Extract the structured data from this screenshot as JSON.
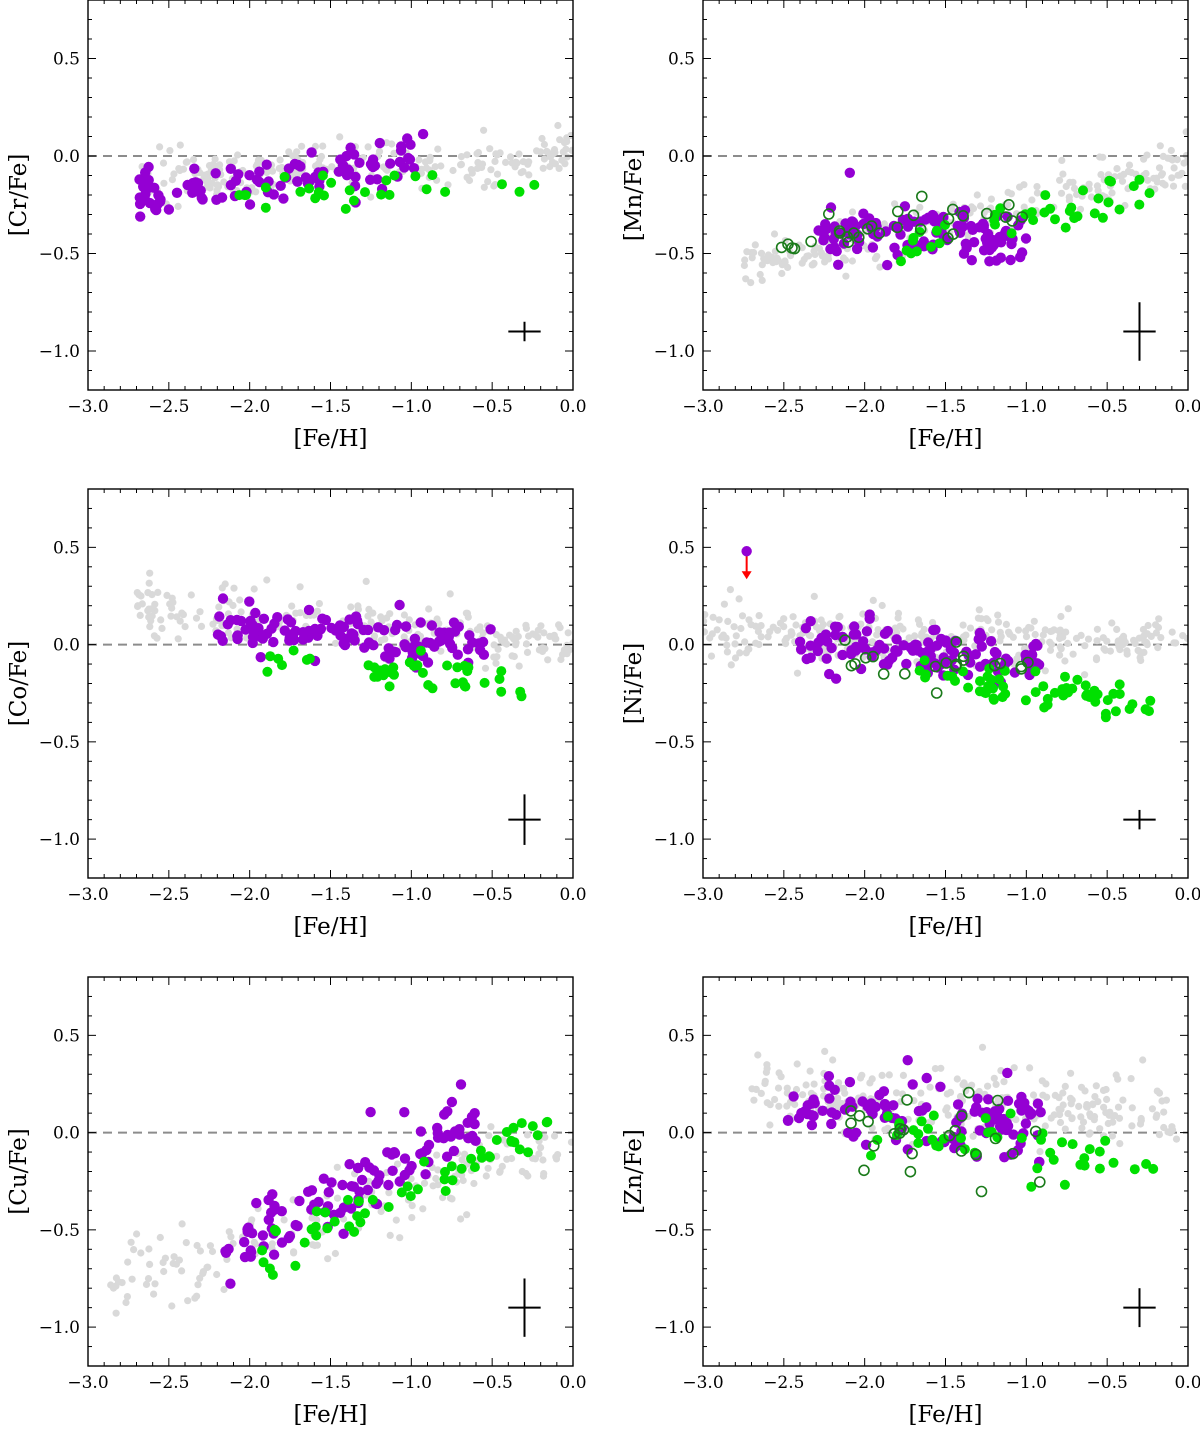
{
  "colors": {
    "background_stars": "#d9d9d9",
    "sample_a": "#9400d3",
    "sample_b": "#00e000",
    "sample_b_open": "#1a7a1a",
    "reference_line": "#8c8c8c",
    "upper_limit_arrow": "#ff0000",
    "axes": "#000000"
  },
  "chart_data": [
    {
      "type": "scatter",
      "title": "",
      "xlabel": "[Fe/H]",
      "ylabel": "[Cr/Fe]",
      "xlim": [
        -3.0,
        0.0
      ],
      "ylim": [
        -1.2,
        0.8
      ],
      "xticks": [
        "−3.0",
        "−2.5",
        "−2.0",
        "−1.5",
        "−1.0",
        "−0.5",
        "0.0"
      ],
      "yticks": [
        "−1.0",
        "−0.5",
        "0.0",
        "0.5"
      ],
      "reference_y": 0.0,
      "error_bar": {
        "x": -0.3,
        "y": -0.9,
        "xerr": 0.1,
        "yerr": 0.05
      },
      "series": [
        {
          "name": "background",
          "marker": "small-grey-dot",
          "x_range": [
            -2.7,
            0.0
          ],
          "trend": {
            "start": -0.12,
            "end": 0.0
          },
          "scatter": 0.06,
          "count": 240
        },
        {
          "name": "purple",
          "marker": "filled-purple",
          "x_range": [
            -2.75,
            -0.9
          ],
          "trend": {
            "start": -0.2,
            "end": -0.02
          },
          "scatter": 0.06,
          "count": 110
        },
        {
          "name": "green",
          "marker": "filled-green",
          "x_range": [
            -2.1,
            -0.2
          ],
          "trend": {
            "start": -0.17,
            "end": -0.12
          },
          "scatter": 0.04,
          "count": 28
        }
      ]
    },
    {
      "type": "scatter",
      "title": "",
      "xlabel": "[Fe/H]",
      "ylabel": "[Mn/Fe]",
      "xlim": [
        -3.0,
        0.0
      ],
      "ylim": [
        -1.2,
        0.8
      ],
      "xticks": [
        "−3.0",
        "−2.5",
        "−2.0",
        "−1.5",
        "−1.0",
        "−0.5",
        "0.0"
      ],
      "yticks": [
        "−1.0",
        "−0.5",
        "0.0",
        "0.5"
      ],
      "reference_y": 0.0,
      "error_bar": {
        "x": -0.3,
        "y": -0.9,
        "xerr": 0.1,
        "yerr": 0.15
      },
      "series": [
        {
          "name": "background",
          "marker": "small-grey-dot",
          "x_range": [
            -2.75,
            0.0
          ],
          "trend": {
            "start": -0.58,
            "end": -0.05
          },
          "scatter": 0.06,
          "count": 230
        },
        {
          "name": "purple",
          "marker": "filled-purple",
          "x_range": [
            -2.3,
            -1.0
          ],
          "trend": {
            "start": -0.38,
            "end": -0.4
          },
          "scatter": 0.07,
          "count": 120
        },
        {
          "name": "green",
          "marker": "filled-green",
          "x_range": [
            -1.8,
            -0.2
          ],
          "trend": {
            "start": -0.45,
            "end": -0.18
          },
          "scatter": 0.05,
          "count": 40
        },
        {
          "name": "green-open",
          "marker": "open-green",
          "x_range": [
            -2.6,
            -1.0
          ],
          "trend": {
            "start": -0.45,
            "end": -0.3
          },
          "scatter": 0.06,
          "count": 30
        }
      ]
    },
    {
      "type": "scatter",
      "title": "",
      "xlabel": "[Fe/H]",
      "ylabel": "[Co/Fe]",
      "xlim": [
        -3.0,
        0.0
      ],
      "ylim": [
        -1.2,
        0.8
      ],
      "xticks": [
        "−3.0",
        "−2.5",
        "−2.0",
        "−1.5",
        "−1.0",
        "−0.5",
        "0.0"
      ],
      "yticks": [
        "−1.0",
        "−0.5",
        "0.0",
        "0.5"
      ],
      "reference_y": 0.0,
      "error_bar": {
        "x": -0.3,
        "y": -0.9,
        "xerr": 0.1,
        "yerr": 0.13
      },
      "series": [
        {
          "name": "background",
          "marker": "small-grey-dot",
          "x_range": [
            -2.7,
            0.0
          ],
          "trend": {
            "start": 0.2,
            "end": 0.02
          },
          "scatter": 0.07,
          "count": 230
        },
        {
          "name": "purple",
          "marker": "filled-purple",
          "x_range": [
            -2.2,
            -0.5
          ],
          "trend": {
            "start": 0.08,
            "end": 0.01
          },
          "scatter": 0.06,
          "count": 130
        },
        {
          "name": "green",
          "marker": "filled-green",
          "x_range": [
            -1.9,
            -0.2
          ],
          "trend": {
            "start": -0.05,
            "end": -0.18
          },
          "scatter": 0.05,
          "count": 40
        }
      ]
    },
    {
      "type": "scatter",
      "title": "",
      "xlabel": "[Fe/H]",
      "ylabel": "[Ni/Fe]",
      "xlim": [
        -3.0,
        0.0
      ],
      "ylim": [
        -1.2,
        0.8
      ],
      "xticks": [
        "−3.0",
        "−2.5",
        "−2.0",
        "−1.5",
        "−1.0",
        "−0.5",
        "0.0"
      ],
      "yticks": [
        "−1.0",
        "−0.5",
        "0.0",
        "0.5"
      ],
      "reference_y": 0.0,
      "error_bar": {
        "x": -0.3,
        "y": -0.9,
        "xerr": 0.1,
        "yerr": 0.05
      },
      "upper_limit": {
        "x": -2.73,
        "y": 0.48
      },
      "series": [
        {
          "name": "background",
          "marker": "small-grey-dot",
          "x_range": [
            -3.0,
            0.0
          ],
          "trend": {
            "start": 0.05,
            "end": 0.02
          },
          "scatter": 0.07,
          "count": 290
        },
        {
          "name": "purple",
          "marker": "filled-purple",
          "x_range": [
            -2.4,
            -0.9
          ],
          "trend": {
            "start": 0.02,
            "end": -0.1
          },
          "scatter": 0.06,
          "count": 130
        },
        {
          "name": "green",
          "marker": "filled-green",
          "x_range": [
            -1.7,
            -0.2
          ],
          "trend": {
            "start": -0.15,
            "end": -0.32
          },
          "scatter": 0.05,
          "count": 60
        },
        {
          "name": "green-open",
          "marker": "open-green",
          "x_range": [
            -2.2,
            -0.9
          ],
          "trend": {
            "start": -0.07,
            "end": -0.08
          },
          "scatter": 0.05,
          "count": 20
        }
      ]
    },
    {
      "type": "scatter",
      "title": "",
      "xlabel": "[Fe/H]",
      "ylabel": "[Cu/Fe]",
      "xlim": [
        -3.0,
        0.0
      ],
      "ylim": [
        -1.2,
        0.8
      ],
      "xticks": [
        "−3.0",
        "−2.5",
        "−2.0",
        "−1.5",
        "−1.0",
        "−0.5",
        "0.0"
      ],
      "yticks": [
        "−1.0",
        "−0.5",
        "0.0",
        "0.5"
      ],
      "reference_y": 0.0,
      "error_bar": {
        "x": -0.3,
        "y": -0.9,
        "xerr": 0.1,
        "yerr": 0.15
      },
      "series": [
        {
          "name": "background",
          "marker": "small-grey-dot",
          "x_range": [
            -2.9,
            0.0
          ],
          "trend": {
            "start": -0.8,
            "end": -0.05
          },
          "scatter": 0.09,
          "count": 180
        },
        {
          "name": "purple",
          "marker": "filled-purple",
          "x_range": [
            -2.15,
            -0.6
          ],
          "trend": {
            "start": -0.62,
            "end": 0.05
          },
          "scatter": 0.09,
          "count": 110
        },
        {
          "name": "green",
          "marker": "filled-green",
          "x_range": [
            -1.95,
            -0.15
          ],
          "trend": {
            "start": -0.7,
            "end": 0.05
          },
          "scatter": 0.06,
          "count": 55
        }
      ]
    },
    {
      "type": "scatter",
      "title": "",
      "xlabel": "[Fe/H]",
      "ylabel": "[Zn/Fe]",
      "xlim": [
        -3.0,
        0.0
      ],
      "ylim": [
        -1.2,
        0.8
      ],
      "xticks": [
        "−3.0",
        "−2.5",
        "−2.0",
        "−1.5",
        "−1.0",
        "−0.5",
        "0.0"
      ],
      "yticks": [
        "−1.0",
        "−0.5",
        "0.0",
        "0.5"
      ],
      "reference_y": 0.0,
      "error_bar": {
        "x": -0.3,
        "y": -0.9,
        "xerr": 0.1,
        "yerr": 0.1
      },
      "series": [
        {
          "name": "background",
          "marker": "small-grey-dot",
          "x_range": [
            -2.7,
            0.0
          ],
          "trend": {
            "start": 0.2,
            "end": 0.1
          },
          "scatter": 0.09,
          "count": 260
        },
        {
          "name": "purple",
          "marker": "filled-purple",
          "x_range": [
            -2.5,
            -0.9
          ],
          "trend": {
            "start": 0.12,
            "end": 0.05
          },
          "scatter": 0.09,
          "count": 120
        },
        {
          "name": "green",
          "marker": "filled-green",
          "x_range": [
            -2.1,
            -0.2
          ],
          "trend": {
            "start": 0.05,
            "end": -0.15
          },
          "scatter": 0.08,
          "count": 45
        },
        {
          "name": "green-open",
          "marker": "open-green",
          "x_range": [
            -2.1,
            -0.9
          ],
          "trend": {
            "start": 0.1,
            "end": -0.1
          },
          "scatter": 0.12,
          "count": 25
        }
      ]
    }
  ]
}
